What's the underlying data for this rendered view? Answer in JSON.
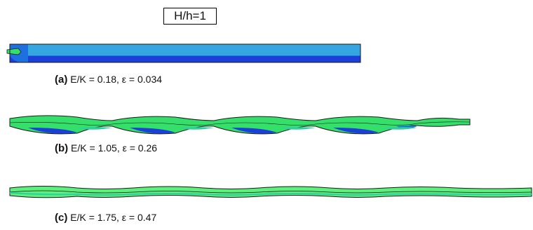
{
  "title": "H/h=1",
  "colors": {
    "light_blue": "#34a6e0",
    "dark_blue": "#1b3fd8",
    "mid_blue": "#1e6fe0",
    "green": "#35e06a",
    "light_green": "#5cf07c",
    "cyan_green": "#2ed0a0",
    "outline": "#1a1a1a"
  },
  "panels": [
    {
      "tag": "(a)",
      "params": "E/K = 0.18, ε = 0.034",
      "waves": 0
    },
    {
      "tag": "(b)",
      "params": "E/K = 1.05, ε = 0.26",
      "waves": 5
    },
    {
      "tag": "(c)",
      "params": "E/K = 1.75, ε = 0.47",
      "waves": 7
    }
  ]
}
